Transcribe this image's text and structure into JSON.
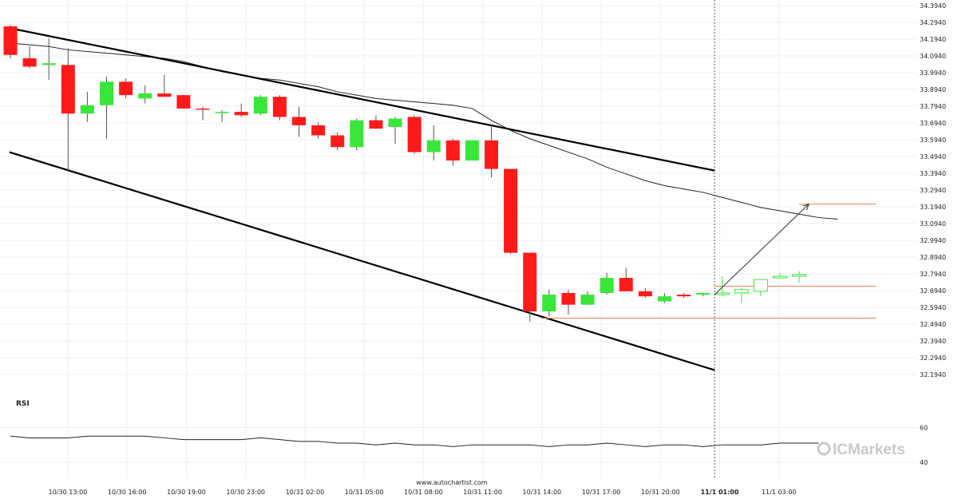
{
  "chart_data": {
    "type": "candlestick",
    "y_ticks": [
      "34.3940",
      "34.2940",
      "34.1940",
      "34.0940",
      "33.9940",
      "33.8940",
      "33.7940",
      "33.6940",
      "33.5940",
      "33.4940",
      "33.3940",
      "33.2940",
      "33.1940",
      "33.0940",
      "32.9940",
      "32.8940",
      "32.7940",
      "32.6940",
      "32.5940",
      "32.4940",
      "32.3940",
      "32.2940",
      "32.1940"
    ],
    "ylim": [
      32.194,
      34.394
    ],
    "x_ticks": [
      "10/30 13:00",
      "10/30 16:00",
      "10/30 19:00",
      "10/30 23:00",
      "10/31 02:00",
      "10/31 05:00",
      "10/31 08:00",
      "10/31 11:00",
      "10/31 14:00",
      "10/31 17:00",
      "10/31 20:00",
      "11/1 01:00",
      "11/1 03:00"
    ],
    "x_ticks_bold": [
      false,
      false,
      false,
      false,
      false,
      false,
      false,
      false,
      false,
      false,
      false,
      true,
      false
    ],
    "candles": [
      {
        "o": 34.27,
        "h": 34.28,
        "l": 34.08,
        "c": 34.1,
        "bull": false
      },
      {
        "o": 34.08,
        "h": 34.15,
        "l": 34.02,
        "c": 34.03,
        "bull": false
      },
      {
        "o": 34.04,
        "h": 34.2,
        "l": 33.95,
        "c": 34.05,
        "bull": true
      },
      {
        "o": 34.04,
        "h": 34.14,
        "l": 33.41,
        "c": 33.75,
        "bull": false
      },
      {
        "o": 33.75,
        "h": 33.88,
        "l": 33.7,
        "c": 33.8,
        "bull": true
      },
      {
        "o": 33.8,
        "h": 33.97,
        "l": 33.6,
        "c": 33.94,
        "bull": true
      },
      {
        "o": 33.94,
        "h": 33.96,
        "l": 33.84,
        "c": 33.86,
        "bull": false
      },
      {
        "o": 33.84,
        "h": 33.92,
        "l": 33.81,
        "c": 33.87,
        "bull": true
      },
      {
        "o": 33.87,
        "h": 33.98,
        "l": 33.85,
        "c": 33.85,
        "bull": false
      },
      {
        "o": 33.86,
        "h": 33.86,
        "l": 33.78,
        "c": 33.78,
        "bull": false
      },
      {
        "o": 33.78,
        "h": 33.79,
        "l": 33.71,
        "c": 33.78,
        "bull": false
      },
      {
        "o": 33.76,
        "h": 33.77,
        "l": 33.7,
        "c": 33.76,
        "bull": true
      },
      {
        "o": 33.76,
        "h": 33.81,
        "l": 33.73,
        "c": 33.74,
        "bull": false
      },
      {
        "o": 33.75,
        "h": 33.86,
        "l": 33.74,
        "c": 33.85,
        "bull": true
      },
      {
        "o": 33.85,
        "h": 33.86,
        "l": 33.71,
        "c": 33.73,
        "bull": false
      },
      {
        "o": 33.73,
        "h": 33.79,
        "l": 33.61,
        "c": 33.68,
        "bull": false
      },
      {
        "o": 33.68,
        "h": 33.7,
        "l": 33.6,
        "c": 33.62,
        "bull": false
      },
      {
        "o": 33.62,
        "h": 33.64,
        "l": 33.53,
        "c": 33.55,
        "bull": false
      },
      {
        "o": 33.55,
        "h": 33.72,
        "l": 33.53,
        "c": 33.71,
        "bull": true
      },
      {
        "o": 33.71,
        "h": 33.74,
        "l": 33.66,
        "c": 33.66,
        "bull": false
      },
      {
        "o": 33.67,
        "h": 33.73,
        "l": 33.57,
        "c": 33.72,
        "bull": true
      },
      {
        "o": 33.73,
        "h": 33.74,
        "l": 33.51,
        "c": 33.52,
        "bull": false
      },
      {
        "o": 33.52,
        "h": 33.68,
        "l": 33.47,
        "c": 33.59,
        "bull": true
      },
      {
        "o": 33.59,
        "h": 33.6,
        "l": 33.44,
        "c": 33.47,
        "bull": false
      },
      {
        "o": 33.47,
        "h": 33.59,
        "l": 33.47,
        "c": 33.59,
        "bull": true
      },
      {
        "o": 33.59,
        "h": 33.67,
        "l": 33.37,
        "c": 33.42,
        "bull": false
      },
      {
        "o": 33.42,
        "h": 33.42,
        "l": 32.91,
        "c": 32.92,
        "bull": false
      },
      {
        "o": 32.92,
        "h": 32.92,
        "l": 32.51,
        "c": 32.57,
        "bull": false
      },
      {
        "o": 32.57,
        "h": 32.7,
        "l": 32.54,
        "c": 32.67,
        "bull": true
      },
      {
        "o": 32.68,
        "h": 32.7,
        "l": 32.55,
        "c": 32.61,
        "bull": false
      },
      {
        "o": 32.61,
        "h": 32.69,
        "l": 32.61,
        "c": 32.67,
        "bull": true
      },
      {
        "o": 32.68,
        "h": 32.8,
        "l": 32.67,
        "c": 32.77,
        "bull": true
      },
      {
        "o": 32.77,
        "h": 32.83,
        "l": 32.69,
        "c": 32.69,
        "bull": false
      },
      {
        "o": 32.69,
        "h": 32.71,
        "l": 32.65,
        "c": 32.66,
        "bull": false
      },
      {
        "o": 32.63,
        "h": 32.68,
        "l": 32.62,
        "c": 32.66,
        "bull": true
      },
      {
        "o": 32.67,
        "h": 32.68,
        "l": 32.65,
        "c": 32.66,
        "bull": false
      },
      {
        "o": 32.67,
        "h": 32.68,
        "l": 32.66,
        "c": 32.68,
        "bull": true
      }
    ],
    "forecast_candles": [
      {
        "o": 32.67,
        "h": 32.78,
        "l": 32.66,
        "c": 32.68
      },
      {
        "o": 32.68,
        "h": 32.71,
        "l": 32.62,
        "c": 32.7
      },
      {
        "o": 32.69,
        "h": 32.75,
        "l": 32.66,
        "c": 32.76
      },
      {
        "o": 32.77,
        "h": 32.8,
        "l": 32.77,
        "c": 32.78
      },
      {
        "o": 32.78,
        "h": 32.81,
        "l": 32.74,
        "c": 32.79
      }
    ],
    "ma_series": [
      34.17,
      34.16,
      34.15,
      34.13,
      34.12,
      34.11,
      34.1,
      34.09,
      34.08,
      34.06,
      34.03,
      34.0,
      33.98,
      33.96,
      33.95,
      33.93,
      33.91,
      33.88,
      33.86,
      33.84,
      33.83,
      33.82,
      33.81,
      33.8,
      33.78,
      33.71,
      33.65,
      33.6,
      33.56,
      33.52,
      33.48,
      33.43,
      33.39,
      33.35,
      33.32,
      33.3,
      33.28,
      33.25,
      33.22,
      33.19,
      33.17,
      33.15,
      33.13,
      33.12
    ],
    "channel_upper": {
      "from": [
        -0.05,
        34.26
      ],
      "to": [
        36.6,
        33.41
      ]
    },
    "channel_lower": {
      "from": [
        -0.05,
        33.52
      ],
      "to": [
        36.6,
        32.22
      ]
    },
    "forecast_arrow": {
      "from": [
        36.6,
        32.67
      ],
      "to": [
        41.5,
        33.21
      ]
    },
    "levels": [
      {
        "y": 33.21,
        "from": 41.0,
        "to": 45.0
      },
      {
        "y": 32.72,
        "from": 36.6,
        "to": 45.0
      },
      {
        "y": 32.53,
        "from": 27.6,
        "to": 45.0
      }
    ],
    "divider_index": 36.6,
    "rsi": {
      "label": "RSI",
      "ticks": [
        60,
        40
      ],
      "ylim": [
        35,
        67
      ],
      "values": [
        55,
        54,
        54,
        54,
        55,
        55,
        55,
        55,
        54,
        53,
        53,
        53,
        53,
        54,
        53,
        52,
        52,
        51,
        51,
        50,
        51,
        50,
        50,
        49,
        50,
        50,
        50,
        50,
        49,
        50,
        50,
        51,
        50,
        49,
        50,
        50,
        49,
        50,
        50,
        50,
        51,
        51,
        51
      ]
    },
    "colors": {
      "bull": "#39e639",
      "bear": "#ff1a1a",
      "wick": "#555555",
      "channel": "#000000",
      "level": "#e8825a",
      "ma": "#222222"
    }
  },
  "footer": {
    "source": "www.autochartist.com",
    "brand": "ICMarkets"
  }
}
